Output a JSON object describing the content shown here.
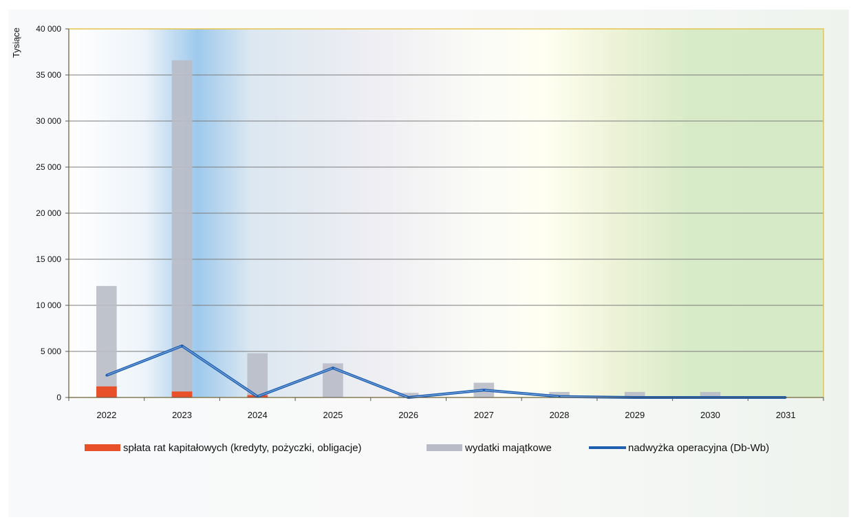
{
  "chart_data": {
    "type": "bar",
    "ylabel": "Tysiące",
    "ylim": [
      0,
      40000
    ],
    "yticks": [
      0,
      5000,
      10000,
      15000,
      20000,
      25000,
      30000,
      35000,
      40000
    ],
    "ytick_labels": [
      "0",
      "5 000",
      "10 000",
      "15 000",
      "20 000",
      "25 000",
      "30 000",
      "35 000",
      "40 000"
    ],
    "categories": [
      "2022",
      "2023",
      "2024",
      "2025",
      "2026",
      "2027",
      "2028",
      "2029",
      "2030",
      "2031"
    ],
    "grid": true,
    "legend_position": "bottom",
    "series": [
      {
        "name": "spłata rat kapitałowych (kredyty, pożyczki, obligacje)",
        "kind": "bar",
        "color": "#e8502a",
        "values": [
          1200,
          650,
          250,
          0,
          0,
          0,
          0,
          0,
          0,
          0
        ]
      },
      {
        "name": "wydatki majątkowe",
        "kind": "bar",
        "color": "#b9bcc6",
        "values": [
          12100,
          36600,
          4800,
          3700,
          500,
          1600,
          600,
          600,
          600,
          0
        ]
      },
      {
        "name": "nadwyżka operacyjna (Db-Wb)",
        "kind": "line",
        "color": "#1f5fb0",
        "values": [
          2400,
          5600,
          100,
          3200,
          0,
          800,
          100,
          0,
          0,
          0
        ]
      }
    ]
  }
}
